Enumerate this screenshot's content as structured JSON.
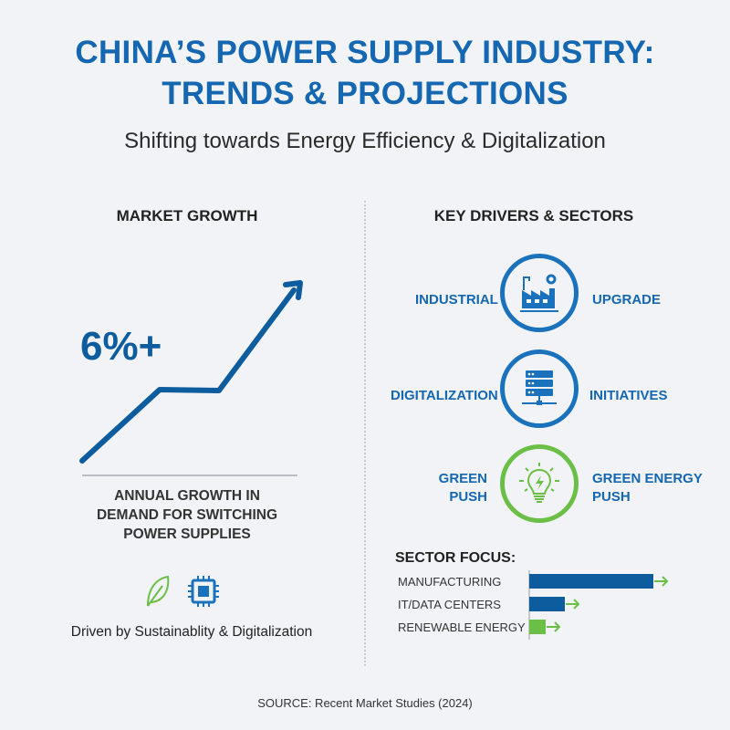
{
  "header": {
    "title_line1": "CHINA’S POWER SUPPLY INDUSTRY:",
    "title_line2": "TRENDS & PROJECTIONS",
    "subtitle": "Shifting towards Energy Efficiency & Digitalization"
  },
  "market_growth": {
    "heading": "MARKET GROWTH",
    "value": "6%+",
    "description_lines": [
      "ANNUAL GROWTH IN",
      "DEMAND FOR SWITCHING",
      "POWER SUPPLIES"
    ],
    "icons": [
      "leaf-icon",
      "microchip-icon"
    ],
    "driven_by": "Driven by Sustainablity & Digitalization"
  },
  "key_drivers": {
    "heading": "KEY DRIVERS & SECTORS",
    "items": [
      {
        "left": "INDUSTRIAL",
        "right": "UPGRADE",
        "icon": "factory-gear-icon",
        "color": "#1a72bd"
      },
      {
        "left": "DIGITALIZATION",
        "right": "INITIATIVES",
        "icon": "server-network-icon",
        "color": "#1a72bd"
      },
      {
        "left_lines": [
          "GREEN",
          "PUSH"
        ],
        "right_lines": [
          "GREEN ENERGY",
          "PUSH"
        ],
        "icon": "lightbulb-bolt-icon",
        "color": "#6bbf47"
      }
    ]
  },
  "sector_focus": {
    "heading": "SECTOR FOCUS:",
    "sectors": [
      {
        "label": "MANUFACTURING",
        "relative_level": 1.0,
        "color": "#0d5c9e"
      },
      {
        "label": "IT/DATA CENTERS",
        "relative_level": 0.29,
        "color": "#0d5c9e"
      },
      {
        "label": "RENEWABLE ENERGY",
        "relative_level": 0.13,
        "color": "#6bbf47"
      }
    ]
  },
  "footer": {
    "source": "SOURCE: Recent Market Studies (2024)"
  }
}
